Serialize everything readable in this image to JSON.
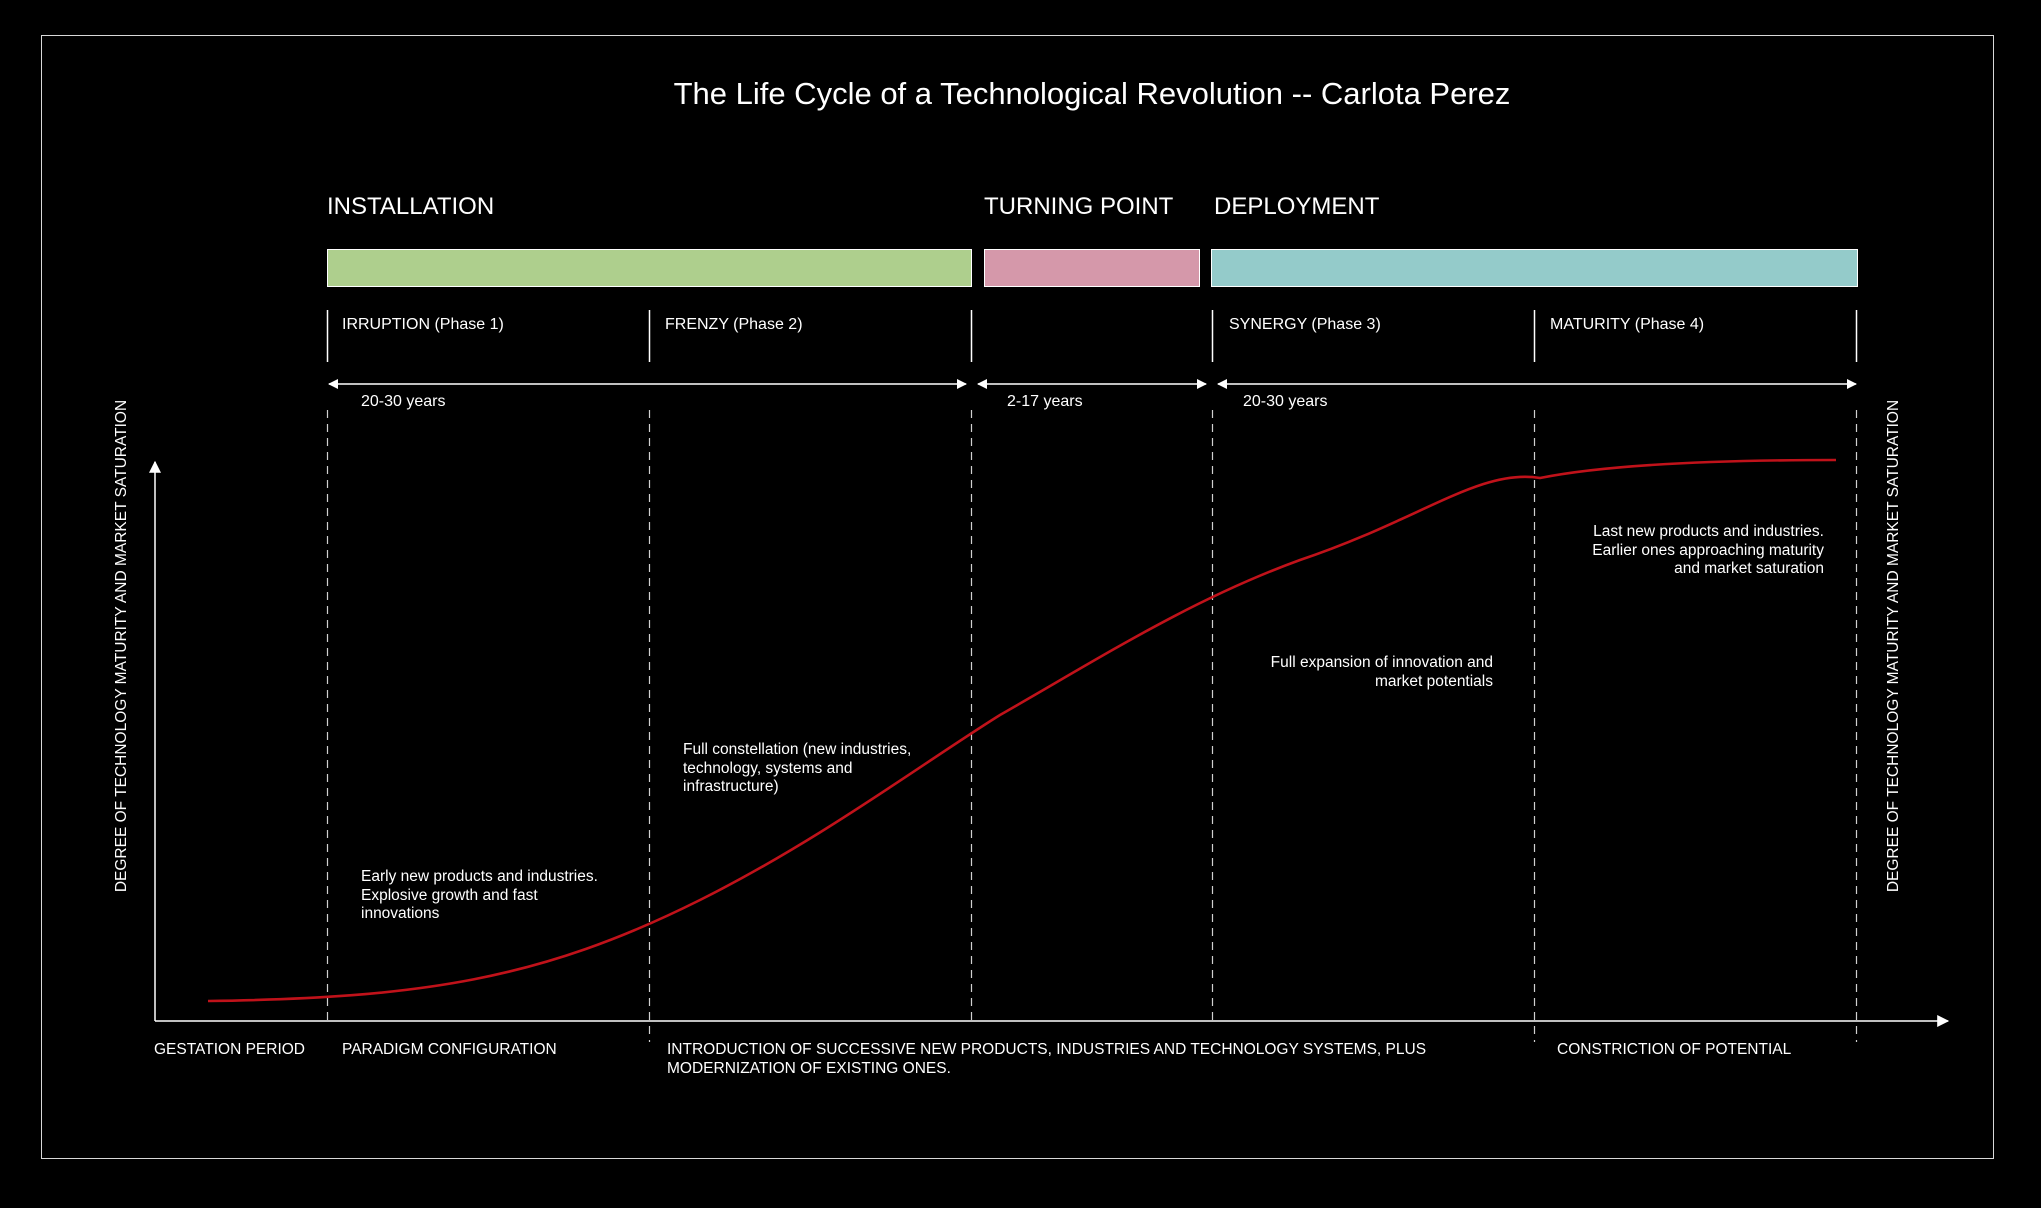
{
  "title": "The Life Cycle of a Technological Revolution -- Carlota Perez",
  "stages": {
    "installation": "INSTALLATION",
    "turning_point": "TURNING POINT",
    "deployment": "DEPLOYMENT"
  },
  "colors": {
    "installation": "#aecf8d",
    "turning_point": "#d598aa",
    "deployment": "#94cbca",
    "curve": "#c0121a"
  },
  "phases": {
    "irruption": "IRRUPTION (Phase 1)",
    "frenzy": "FRENZY (Phase 2)",
    "synergy": "SYNERGY (Phase 3)",
    "maturity": "MATURITY (Phase 4)"
  },
  "durations": {
    "installation": "20-30 years",
    "turning_point": "2-17 years",
    "deployment": "20-30 years"
  },
  "notes": {
    "irruption": [
      "Early new products and industries.",
      "Explosive growth and fast",
      "innovations"
    ],
    "frenzy": [
      "Full constellation (new industries,",
      "technology, systems and",
      "infrastructure)"
    ],
    "synergy": [
      "Full expansion of innovation and",
      "market potentials"
    ],
    "maturity": [
      "Last new products and industries.",
      "Earlier ones approaching maturity",
      "and market saturation"
    ]
  },
  "bottom": {
    "gestation": "GESTATION PERIOD",
    "paradigm": "PARADIGM CONFIGURATION",
    "introduction": [
      "INTRODUCTION OF SUCCESSIVE NEW PRODUCTS, INDUSTRIES AND TECHNOLOGY SYSTEMS, PLUS",
      "MODERNIZATION OF EXISTING ONES."
    ],
    "constriction": "CONSTRICTION OF POTENTIAL"
  },
  "axis_label": "DEGREE OF TECHNOLOGY MATURITY AND MARKET SATURATION"
}
